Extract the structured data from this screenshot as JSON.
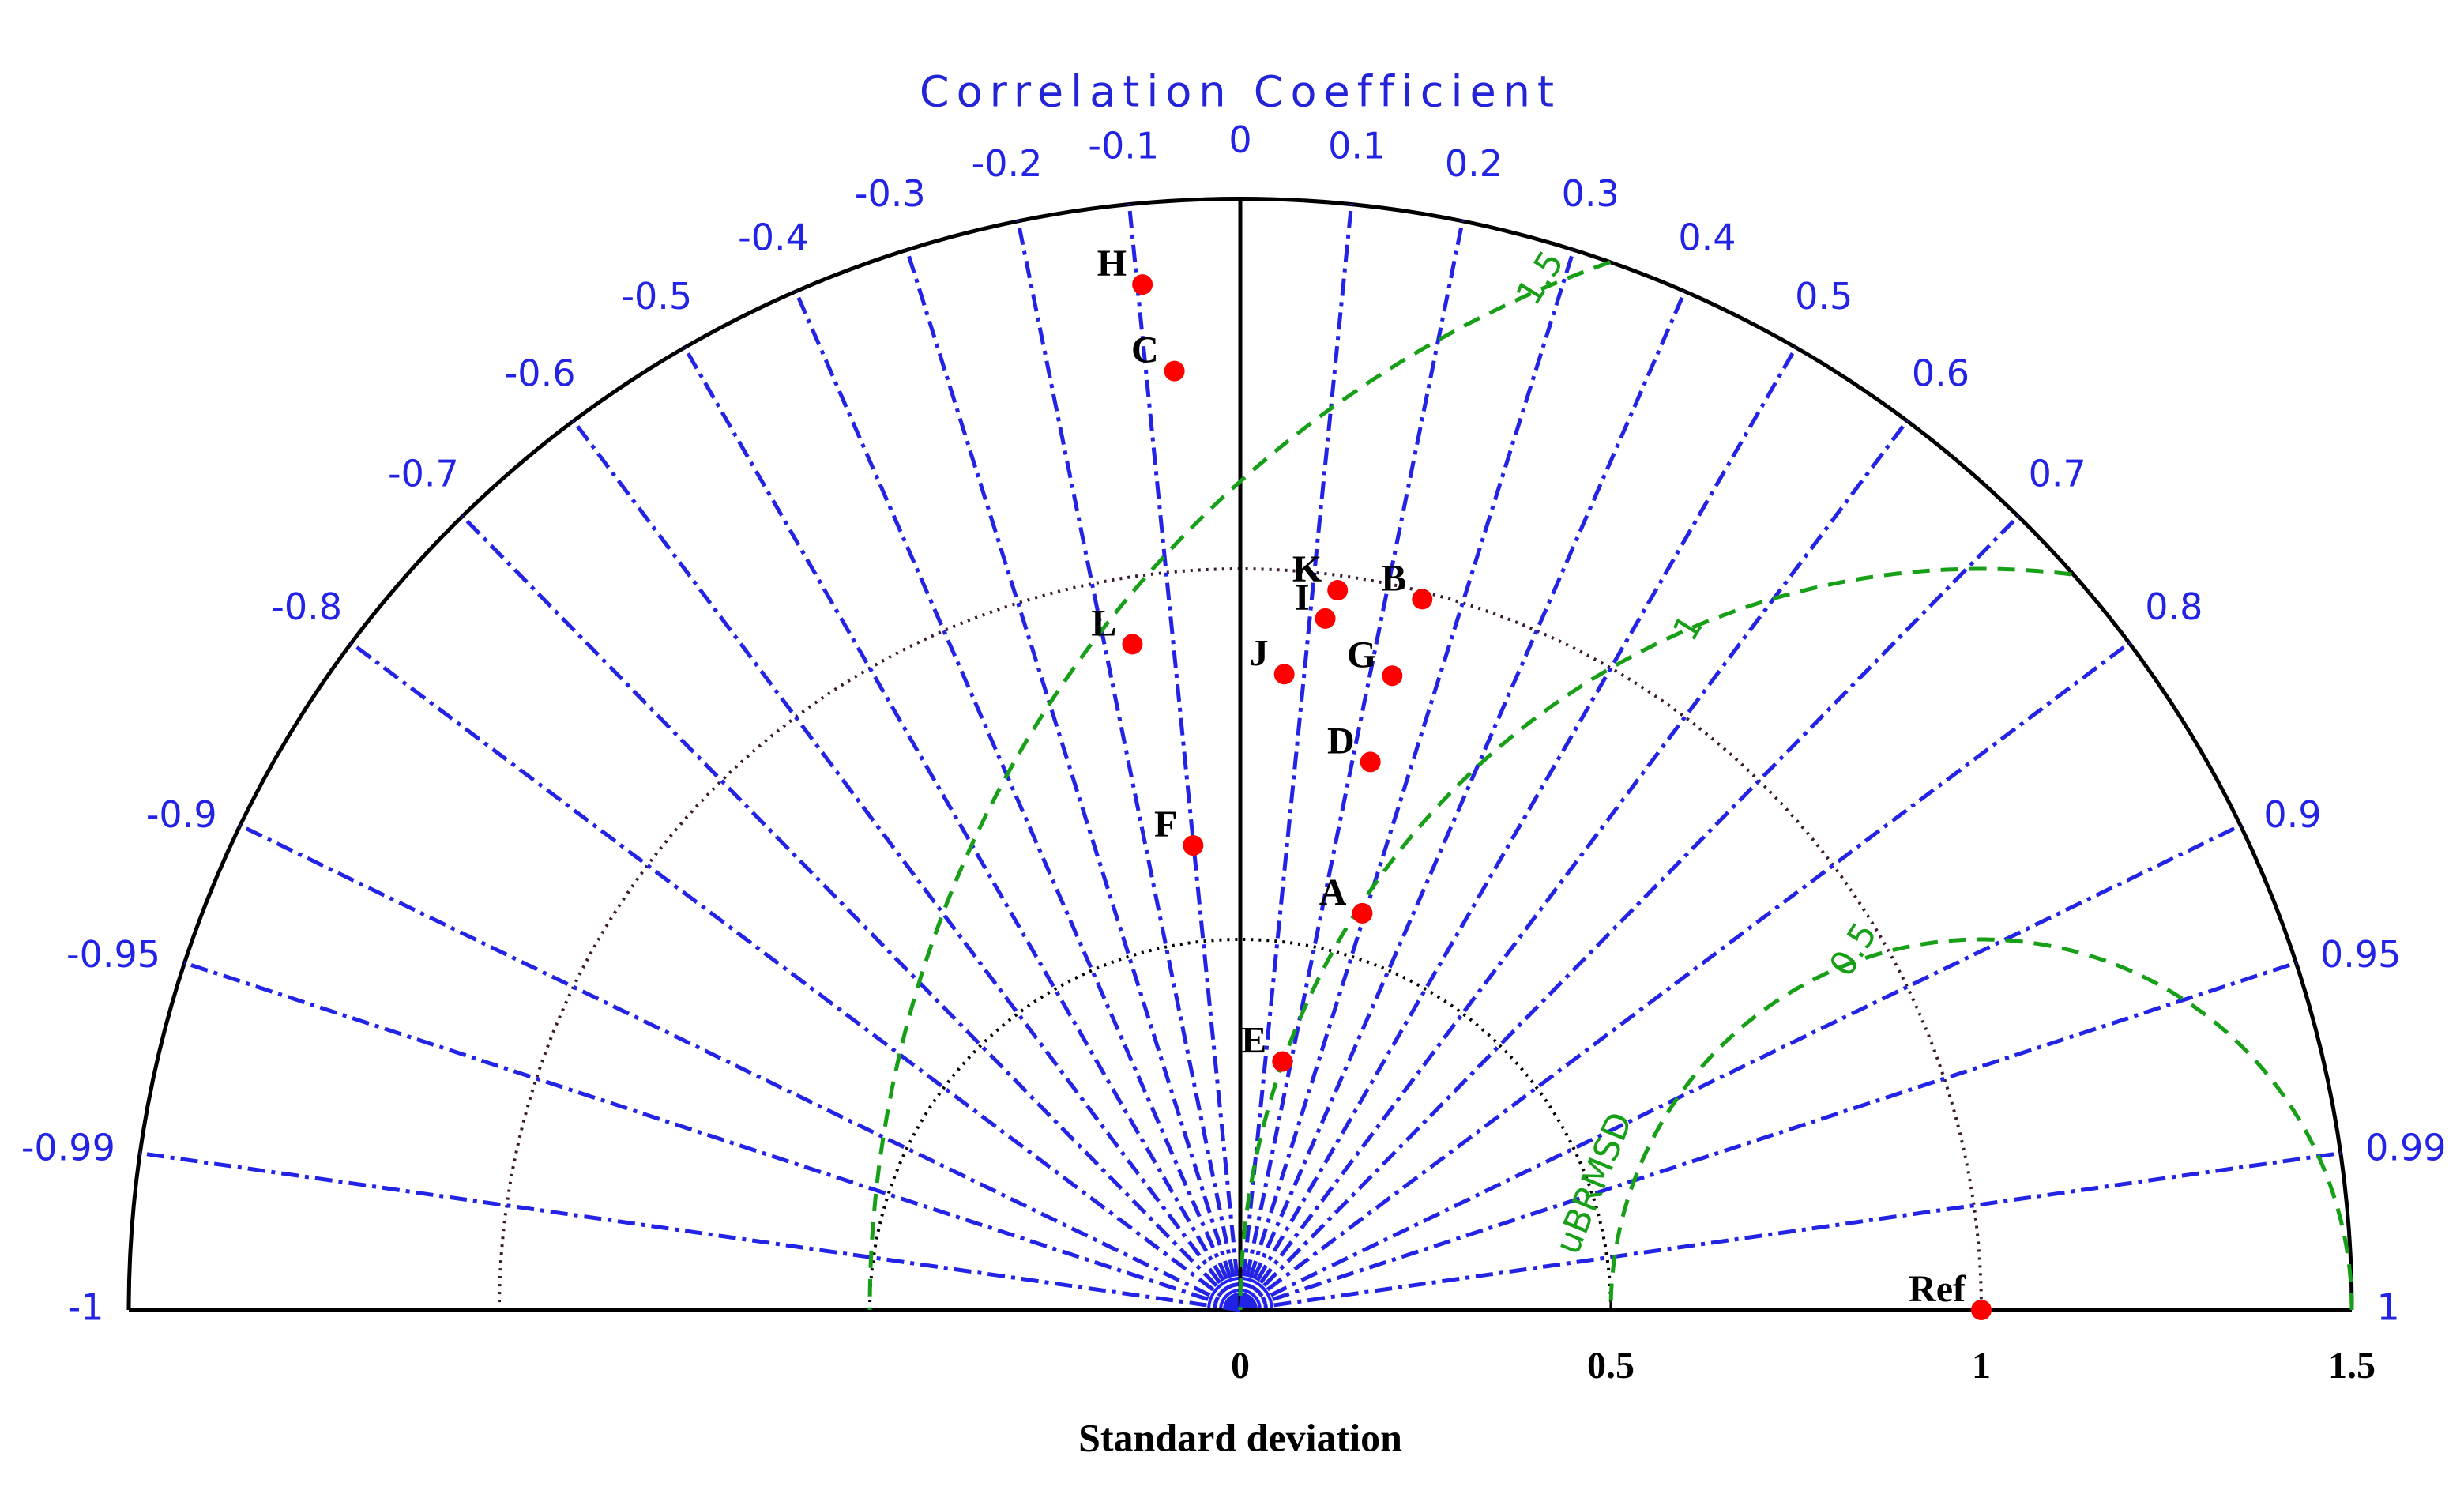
{
  "chart_data": {
    "type": "taylor",
    "title": "Correlation Coefficient",
    "xlabel": "Standard deviation",
    "std_lim": [
      0,
      1.5
    ],
    "std_ticks": [
      0,
      0.5,
      1,
      1.5
    ],
    "corr_ticks": [
      -1,
      -0.99,
      -0.95,
      -0.9,
      -0.8,
      -0.7,
      -0.6,
      -0.5,
      -0.4,
      -0.3,
      -0.2,
      -0.1,
      0,
      0.1,
      0.2,
      0.3,
      0.4,
      0.5,
      0.6,
      0.7,
      0.8,
      0.9,
      0.95,
      0.99,
      1
    ],
    "rmsd_levels": [
      0.5,
      1,
      1.5
    ],
    "rmsd_label": "uBRMSD",
    "point_color": "#ff0000",
    "points": [
      {
        "name": "H",
        "std": 1.39,
        "corr": -0.095
      },
      {
        "name": "C",
        "std": 1.27,
        "corr": -0.07
      },
      {
        "name": "K",
        "std": 0.98,
        "corr": 0.134
      },
      {
        "name": "B",
        "std": 0.99,
        "corr": 0.248
      },
      {
        "name": "I",
        "std": 0.94,
        "corr": 0.122
      },
      {
        "name": "L",
        "std": 0.91,
        "corr": -0.16
      },
      {
        "name": "J",
        "std": 0.86,
        "corr": 0.069
      },
      {
        "name": "G",
        "std": 0.88,
        "corr": 0.233
      },
      {
        "name": "D",
        "std": 0.76,
        "corr": 0.231
      },
      {
        "name": "F",
        "std": 0.63,
        "corr": -0.101
      },
      {
        "name": "A",
        "std": 0.56,
        "corr": 0.294
      },
      {
        "name": "E",
        "std": 0.34,
        "corr": 0.167
      },
      {
        "name": "Ref",
        "std": 1,
        "corr": 1
      }
    ]
  }
}
